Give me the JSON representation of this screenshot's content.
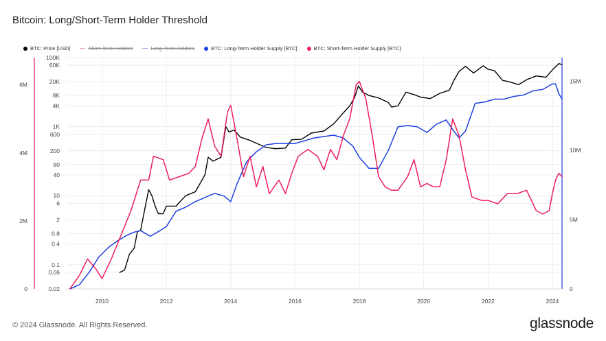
{
  "title": "Bitcoin: Long/Short-Term Holder Threshold",
  "footer": "© 2024 Glassnode. All Rights Reserved.",
  "brand": "glassnode",
  "legend": [
    {
      "label": "BTC: Price [USD]",
      "color": "#000000",
      "enabled": true,
      "kind": "dot"
    },
    {
      "label": "Short-Term Holders",
      "color": "#e8a0b4",
      "enabled": false,
      "kind": "dash"
    },
    {
      "label": "Long-Term Holders",
      "color": "#9bb0e8",
      "enabled": false,
      "kind": "dash"
    },
    {
      "label": "BTC: Long-Term Holder Supply [BTC]",
      "color": "#1d3fe0",
      "enabled": true,
      "kind": "dot"
    },
    {
      "label": "BTC: Short-Term Holder Supply [BTC]",
      "color": "#ee1c5c",
      "enabled": true,
      "kind": "dot"
    }
  ],
  "chart_data": {
    "type": "line",
    "x_ticks": [
      "2010",
      "2012",
      "2014",
      "2016",
      "2018",
      "2020",
      "2022",
      "2024"
    ],
    "xlim": [
      2008.9,
      2024.3
    ],
    "y_left_outer": {
      "ticks": [
        "6M",
        "4M",
        "2M",
        "0"
      ],
      "tick_values": [
        6000000,
        4000000,
        2000000,
        0
      ],
      "lim": [
        0,
        6800000
      ],
      "color": "#ee1c5c"
    },
    "y_price": {
      "ticks": [
        "100K",
        "60K",
        "20K",
        "8K",
        "4K",
        "1K",
        "600",
        "200",
        "80",
        "40",
        "10",
        "6",
        "2",
        "0.8",
        "0.4",
        "0.1",
        "0.06",
        "0.02"
      ],
      "tick_values": [
        100000,
        60000,
        20000,
        8000,
        4000,
        1000,
        600,
        200,
        80,
        40,
        10,
        6,
        2,
        0.8,
        0.4,
        0.1,
        0.06,
        0.02
      ],
      "scale": "log",
      "lim": [
        0.02,
        100000
      ]
    },
    "y_right": {
      "ticks": [
        "15M",
        "10M",
        "5M",
        "0"
      ],
      "tick_values": [
        15000000,
        10000000,
        5000000,
        0
      ],
      "lim": [
        0,
        16700000
      ],
      "color": "#1d3fe0"
    },
    "grid": true,
    "series": [
      {
        "name": "BTC: Price [USD]",
        "color": "#000000",
        "axis": "price",
        "x": [
          2010.55,
          2010.7,
          2010.85,
          2011.0,
          2011.1,
          2011.2,
          2011.3,
          2011.45,
          2011.55,
          2011.65,
          2011.75,
          2011.9,
          2012.0,
          2012.3,
          2012.6,
          2012.9,
          2013.2,
          2013.3,
          2013.45,
          2013.7,
          2013.85,
          2013.95,
          2014.1,
          2014.3,
          2014.6,
          2014.9,
          2015.1,
          2015.4,
          2015.7,
          2015.9,
          2016.2,
          2016.5,
          2016.9,
          2017.2,
          2017.5,
          2017.7,
          2017.85,
          2017.97,
          2018.1,
          2018.3,
          2018.6,
          2018.9,
          2019.0,
          2019.2,
          2019.45,
          2019.7,
          2019.9,
          2020.2,
          2020.5,
          2020.8,
          2020.95,
          2021.1,
          2021.3,
          2021.55,
          2021.85,
          2022.0,
          2022.2,
          2022.45,
          2022.7,
          2022.95,
          2023.2,
          2023.5,
          2023.8,
          2024.0,
          2024.2,
          2024.3
        ],
        "y": [
          0.06,
          0.07,
          0.2,
          0.3,
          0.9,
          1.0,
          3,
          15,
          10,
          5,
          3,
          3,
          5,
          5,
          10,
          13,
          40,
          130,
          100,
          130,
          1000,
          700,
          800,
          500,
          400,
          300,
          250,
          230,
          240,
          420,
          430,
          650,
          750,
          1200,
          2500,
          4000,
          7000,
          15000,
          10000,
          8000,
          6800,
          5000,
          3700,
          4000,
          10000,
          8500,
          7200,
          6500,
          9200,
          11500,
          23000,
          40000,
          56000,
          36000,
          58000,
          46000,
          42000,
          22000,
          19500,
          16500,
          23000,
          29500,
          27000,
          44000,
          67000,
          63000
        ]
      },
      {
        "name": "BTC: Long-Term Holder Supply [BTC]",
        "color": "#1d3fe0",
        "axis": "right",
        "x": [
          2009.0,
          2009.3,
          2009.6,
          2009.9,
          2010.2,
          2010.5,
          2010.8,
          2011.0,
          2011.2,
          2011.5,
          2011.8,
          2012.0,
          2012.3,
          2012.6,
          2012.9,
          2013.2,
          2013.5,
          2013.8,
          2014.0,
          2014.2,
          2014.5,
          2014.8,
          2015.1,
          2015.4,
          2015.7,
          2016.0,
          2016.3,
          2016.6,
          2016.9,
          2017.2,
          2017.5,
          2017.8,
          2018.0,
          2018.3,
          2018.6,
          2018.9,
          2019.2,
          2019.5,
          2019.8,
          2020.1,
          2020.4,
          2020.7,
          2020.9,
          2021.1,
          2021.3,
          2021.6,
          2021.9,
          2022.2,
          2022.5,
          2022.8,
          2023.1,
          2023.4,
          2023.7,
          2024.0,
          2024.1,
          2024.2,
          2024.3
        ],
        "y": [
          0,
          0.3,
          1.2,
          2.3,
          3.0,
          3.5,
          3.9,
          4.1,
          4.2,
          3.8,
          4.2,
          4.5,
          5.6,
          5.9,
          6.3,
          6.6,
          6.9,
          6.7,
          6.3,
          7.6,
          9.2,
          9.9,
          10.4,
          10.5,
          10.5,
          10.5,
          10.7,
          10.9,
          11.0,
          11.1,
          10.9,
          10.3,
          9.5,
          8.7,
          8.7,
          10.0,
          11.7,
          11.8,
          11.7,
          11.3,
          11.9,
          12.2,
          11.5,
          10.9,
          11.4,
          13.4,
          13.5,
          13.7,
          13.7,
          13.9,
          14.0,
          14.3,
          14.4,
          14.8,
          14.8,
          14.1,
          13.7
        ]
      },
      {
        "name": "BTC: Short-Term Holder Supply [BTC]",
        "color": "#ee1c5c",
        "axis": "left_outer",
        "x": [
          2009.0,
          2009.3,
          2009.55,
          2009.8,
          2010.0,
          2010.3,
          2010.6,
          2010.9,
          2011.2,
          2011.45,
          2011.6,
          2011.9,
          2012.1,
          2012.4,
          2012.7,
          2012.9,
          2013.1,
          2013.3,
          2013.5,
          2013.7,
          2013.9,
          2014.0,
          2014.2,
          2014.4,
          2014.6,
          2014.8,
          2015.0,
          2015.2,
          2015.5,
          2015.7,
          2015.9,
          2016.1,
          2016.4,
          2016.7,
          2016.9,
          2017.1,
          2017.3,
          2017.5,
          2017.7,
          2017.9,
          2018.0,
          2018.2,
          2018.4,
          2018.6,
          2018.8,
          2019.0,
          2019.2,
          2019.5,
          2019.7,
          2019.9,
          2020.1,
          2020.3,
          2020.5,
          2020.7,
          2020.9,
          2021.1,
          2021.3,
          2021.5,
          2021.8,
          2022.0,
          2022.3,
          2022.6,
          2022.9,
          2023.2,
          2023.5,
          2023.7,
          2023.9,
          2024.0,
          2024.1,
          2024.2,
          2024.3
        ],
        "y": [
          0,
          0.4,
          0.88,
          0.6,
          0.3,
          0.9,
          1.6,
          2.3,
          3.2,
          3.2,
          3.9,
          3.8,
          3.2,
          3.3,
          3.4,
          3.6,
          4.4,
          5.0,
          4.2,
          3.9,
          5.2,
          5.4,
          4.4,
          3.3,
          3.9,
          3.0,
          3.6,
          2.8,
          3.2,
          2.8,
          3.4,
          3.9,
          4.1,
          3.9,
          3.5,
          4.1,
          3.8,
          4.5,
          5.0,
          6.0,
          6.1,
          5.6,
          4.5,
          3.3,
          3.0,
          2.9,
          2.9,
          3.3,
          3.8,
          3.0,
          3.1,
          3.0,
          3.0,
          3.8,
          5.0,
          4.5,
          3.5,
          2.7,
          2.6,
          2.6,
          2.5,
          2.8,
          2.8,
          2.9,
          2.3,
          2.2,
          2.3,
          2.8,
          3.2,
          3.4,
          3.3
        ]
      }
    ]
  }
}
